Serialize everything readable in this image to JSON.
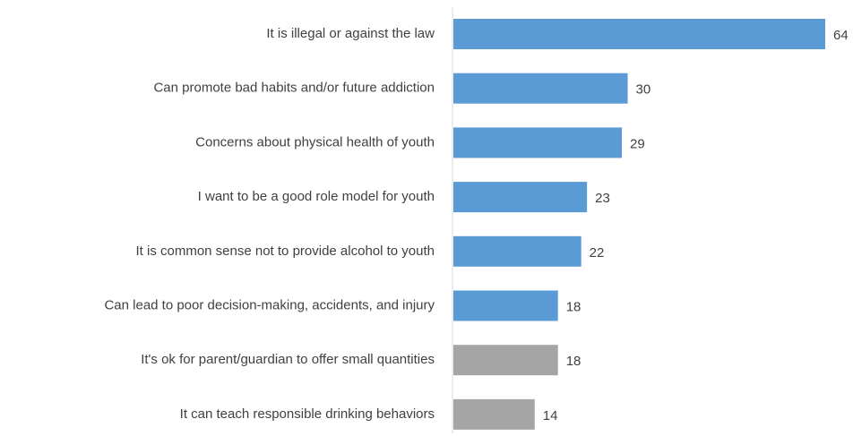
{
  "chart_data": {
    "type": "bar",
    "orientation": "horizontal",
    "title": "",
    "xlabel": "",
    "ylabel": "",
    "xlim": [
      0,
      64
    ],
    "grid": false,
    "legend": "none",
    "categories": [
      "It is illegal or against the law",
      "Can promote bad habits and/or future addiction",
      "Concerns about physical health of youth",
      "I want to be a good role model for youth",
      "It is common sense not to provide alcohol to youth",
      "Can lead to poor decision-making, accidents, and injury",
      "It's ok for parent/guardian to offer small quantities",
      "It can teach responsible drinking behaviors"
    ],
    "values": [
      64,
      30,
      29,
      23,
      22,
      18,
      18,
      14
    ],
    "bar_colors": [
      "#5b9bd5",
      "#5b9bd5",
      "#5b9bd5",
      "#5b9bd5",
      "#5b9bd5",
      "#5b9bd5",
      "#a5a5a5",
      "#a5a5a5"
    ]
  }
}
